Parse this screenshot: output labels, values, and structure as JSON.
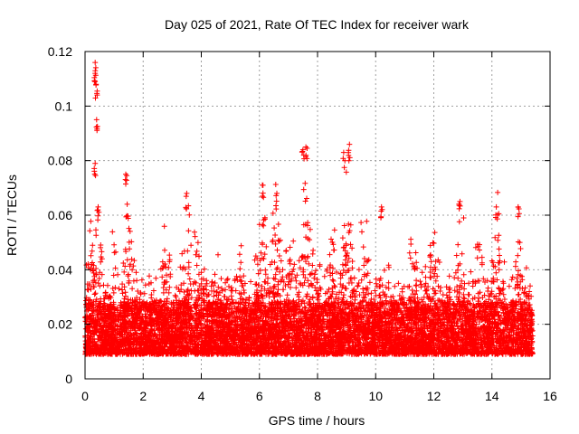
{
  "chart_data": {
    "type": "scatter",
    "title": "Day 025 of 2021, Rate Of TEC Index for receiver wark",
    "xlabel": "GPS time / hours",
    "ylabel": "ROTI / TECUs",
    "xlim": [
      0,
      16
    ],
    "ylim": [
      0,
      0.12
    ],
    "xticks": [
      "0",
      "2",
      "4",
      "6",
      "8",
      "10",
      "12",
      "14",
      "16"
    ],
    "yticks": [
      "0",
      "0.02",
      "0.04",
      "0.06",
      "0.08",
      "0.1",
      "0.12"
    ],
    "grid": true,
    "marker": "+",
    "color": "#ff0000",
    "series": [
      {
        "name": "ROTI",
        "time_range_hours": [
          0,
          15.4
        ],
        "baseline_band": [
          0.005,
          0.03
        ],
        "notable_points": [
          {
            "x": 0.35,
            "y": 0.116
          },
          {
            "x": 0.35,
            "y": 0.112
          },
          {
            "x": 0.38,
            "y": 0.108
          },
          {
            "x": 0.4,
            "y": 0.095
          },
          {
            "x": 0.35,
            "y": 0.079
          },
          {
            "x": 1.4,
            "y": 0.075
          },
          {
            "x": 1.45,
            "y": 0.064
          },
          {
            "x": 0.45,
            "y": 0.063
          },
          {
            "x": 3.5,
            "y": 0.068
          },
          {
            "x": 6.1,
            "y": 0.071
          },
          {
            "x": 6.6,
            "y": 0.068
          },
          {
            "x": 7.5,
            "y": 0.084
          },
          {
            "x": 7.6,
            "y": 0.085
          },
          {
            "x": 8.9,
            "y": 0.083
          },
          {
            "x": 9.1,
            "y": 0.086
          },
          {
            "x": 10.2,
            "y": 0.063
          },
          {
            "x": 12.9,
            "y": 0.065
          },
          {
            "x": 14.15,
            "y": 0.063
          },
          {
            "x": 14.9,
            "y": 0.063
          }
        ]
      }
    ]
  }
}
